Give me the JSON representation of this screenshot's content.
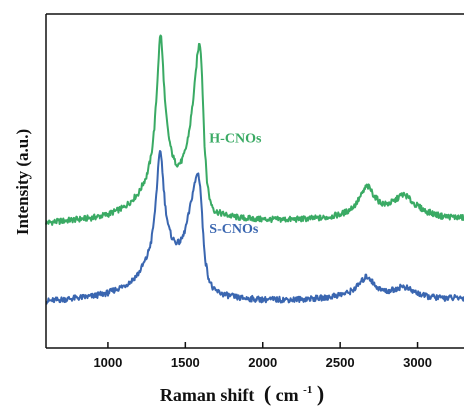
{
  "chart_data": {
    "type": "line",
    "title": "",
    "xlabel": "Raman shift",
    "xlabel_unit_base": "cm",
    "xlabel_unit_exp": "-1",
    "ylabel": "Intensity (a.u.)",
    "xlim": [
      600,
      3300
    ],
    "x_ticks": [
      1000,
      1500,
      2000,
      2500,
      3000
    ],
    "y_ticks_labeled": false,
    "grid": false,
    "legend": "inline-labels",
    "series": [
      {
        "name": "H-CNOs",
        "color": "#3aaa64",
        "label_at": [
          1655,
          1.23
        ],
        "points": [
          [
            600,
            0.75
          ],
          [
            700,
            0.76
          ],
          [
            800,
            0.77
          ],
          [
            900,
            0.78
          ],
          [
            1000,
            0.8
          ],
          [
            1050,
            0.82
          ],
          [
            1100,
            0.84
          ],
          [
            1150,
            0.88
          ],
          [
            1200,
            0.93
          ],
          [
            1250,
            1.03
          ],
          [
            1280,
            1.15
          ],
          [
            1300,
            1.32
          ],
          [
            1315,
            1.52
          ],
          [
            1325,
            1.7
          ],
          [
            1335,
            1.85
          ],
          [
            1340,
            1.88
          ],
          [
            1345,
            1.85
          ],
          [
            1355,
            1.7
          ],
          [
            1370,
            1.45
          ],
          [
            1390,
            1.28
          ],
          [
            1410,
            1.18
          ],
          [
            1430,
            1.12
          ],
          [
            1450,
            1.1
          ],
          [
            1470,
            1.11
          ],
          [
            1490,
            1.15
          ],
          [
            1510,
            1.22
          ],
          [
            1530,
            1.33
          ],
          [
            1550,
            1.48
          ],
          [
            1565,
            1.62
          ],
          [
            1575,
            1.73
          ],
          [
            1585,
            1.8
          ],
          [
            1592,
            1.83
          ],
          [
            1598,
            1.8
          ],
          [
            1605,
            1.7
          ],
          [
            1615,
            1.45
          ],
          [
            1625,
            1.2
          ],
          [
            1640,
            1.0
          ],
          [
            1660,
            0.88
          ],
          [
            1690,
            0.82
          ],
          [
            1750,
            0.8
          ],
          [
            1850,
            0.78
          ],
          [
            2000,
            0.77
          ],
          [
            2200,
            0.77
          ],
          [
            2400,
            0.78
          ],
          [
            2500,
            0.8
          ],
          [
            2550,
            0.82
          ],
          [
            2600,
            0.86
          ],
          [
            2640,
            0.92
          ],
          [
            2670,
            0.97
          ],
          [
            2690,
            0.96
          ],
          [
            2720,
            0.91
          ],
          [
            2760,
            0.87
          ],
          [
            2800,
            0.86
          ],
          [
            2850,
            0.88
          ],
          [
            2900,
            0.92
          ],
          [
            2930,
            0.91
          ],
          [
            2970,
            0.87
          ],
          [
            3050,
            0.82
          ],
          [
            3150,
            0.79
          ],
          [
            3300,
            0.78
          ]
        ]
      },
      {
        "name": "S-CNOs",
        "color": "#3a66b0",
        "label_at": [
          1655,
          0.69
        ],
        "points": [
          [
            600,
            0.28
          ],
          [
            700,
            0.29
          ],
          [
            800,
            0.3
          ],
          [
            900,
            0.31
          ],
          [
            1000,
            0.33
          ],
          [
            1050,
            0.35
          ],
          [
            1100,
            0.37
          ],
          [
            1150,
            0.4
          ],
          [
            1200,
            0.45
          ],
          [
            1250,
            0.54
          ],
          [
            1280,
            0.64
          ],
          [
            1300,
            0.78
          ],
          [
            1315,
            0.95
          ],
          [
            1325,
            1.08
          ],
          [
            1335,
            1.17
          ],
          [
            1340,
            1.18
          ],
          [
            1345,
            1.15
          ],
          [
            1355,
            1.02
          ],
          [
            1370,
            0.85
          ],
          [
            1390,
            0.73
          ],
          [
            1410,
            0.67
          ],
          [
            1430,
            0.64
          ],
          [
            1450,
            0.63
          ],
          [
            1470,
            0.64
          ],
          [
            1490,
            0.68
          ],
          [
            1510,
            0.75
          ],
          [
            1530,
            0.84
          ],
          [
            1550,
            0.94
          ],
          [
            1565,
            1.0
          ],
          [
            1575,
            1.04
          ],
          [
            1580,
            1.05
          ],
          [
            1587,
            1.03
          ],
          [
            1595,
            0.98
          ],
          [
            1605,
            0.85
          ],
          [
            1615,
            0.68
          ],
          [
            1630,
            0.52
          ],
          [
            1650,
            0.42
          ],
          [
            1680,
            0.35
          ],
          [
            1750,
            0.32
          ],
          [
            1850,
            0.3
          ],
          [
            2000,
            0.29
          ],
          [
            2200,
            0.29
          ],
          [
            2400,
            0.3
          ],
          [
            2500,
            0.32
          ],
          [
            2550,
            0.33
          ],
          [
            2600,
            0.36
          ],
          [
            2640,
            0.4
          ],
          [
            2670,
            0.43
          ],
          [
            2690,
            0.42
          ],
          [
            2720,
            0.38
          ],
          [
            2760,
            0.35
          ],
          [
            2800,
            0.34
          ],
          [
            2850,
            0.35
          ],
          [
            2900,
            0.37
          ],
          [
            2930,
            0.36
          ],
          [
            2970,
            0.34
          ],
          [
            3050,
            0.31
          ],
          [
            3150,
            0.3
          ],
          [
            3300,
            0.3
          ]
        ]
      }
    ]
  }
}
